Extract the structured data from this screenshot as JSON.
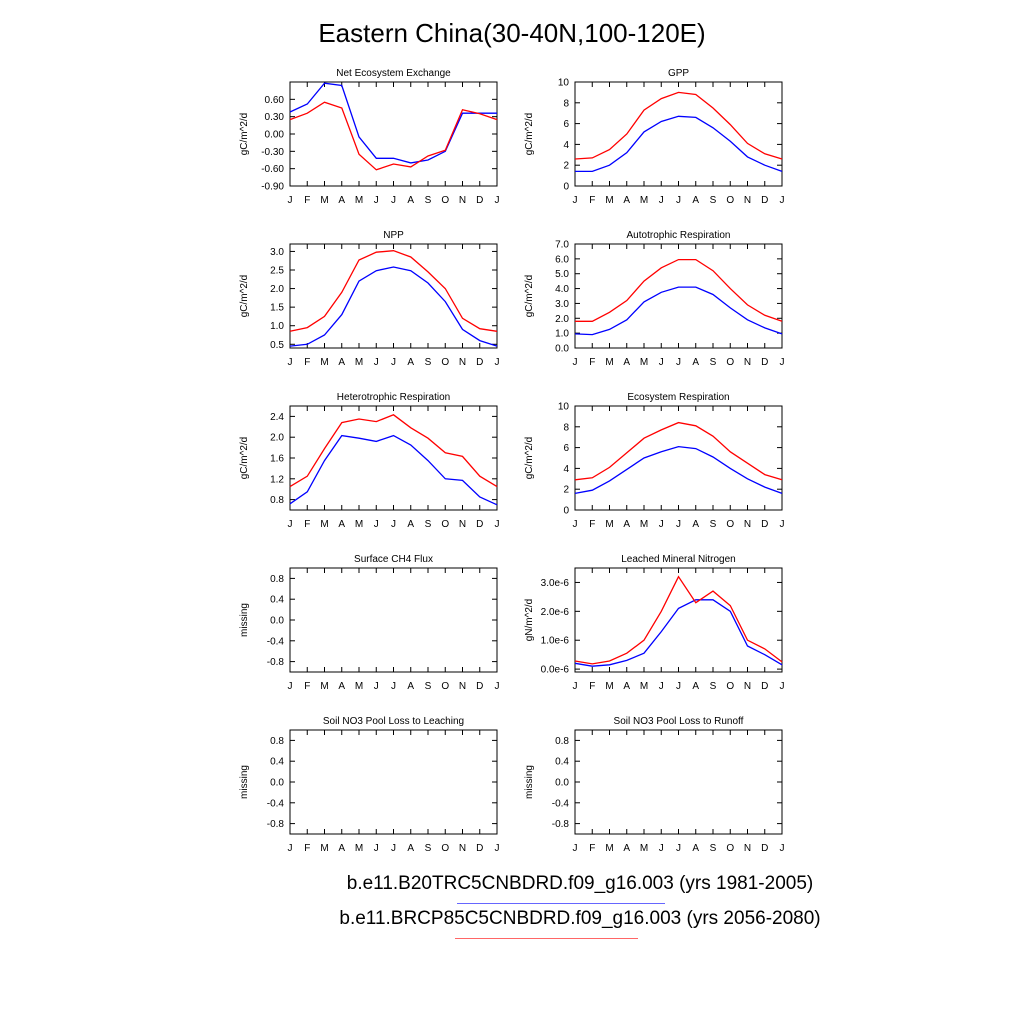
{
  "figure": {
    "title": "Eastern China(30-40N,100-120E)",
    "colors": {
      "case1": "#0000ff",
      "case2": "#ff0000"
    },
    "legend": [
      {
        "label": "b.e11.B20TRC5CNBDRD.f09_g16.003 (yrs 1981-2005)",
        "color": "#0000ff"
      },
      {
        "label": "b.e11.BRCP85C5CNBDRD.f09_g16.003 (yrs 2056-2080)",
        "color": "#ff0000"
      }
    ]
  },
  "chart_data": [
    {
      "type": "line",
      "title": "Net Ecosystem Exchange",
      "ylabel": "gC/m^2/d",
      "ylim": [
        -0.9,
        0.9
      ],
      "yticks": [
        "-0.90",
        "-0.60",
        "-0.30",
        "0.00",
        "0.30",
        "0.60"
      ],
      "categories": [
        "J",
        "F",
        "M",
        "A",
        "M",
        "J",
        "J",
        "A",
        "S",
        "O",
        "N",
        "D",
        "J"
      ],
      "series": [
        {
          "color": "#0000ff",
          "values": [
            0.38,
            0.52,
            0.88,
            0.84,
            -0.05,
            -0.42,
            -0.42,
            -0.5,
            -0.45,
            -0.3,
            0.36,
            0.36,
            0.36
          ]
        },
        {
          "color": "#ff0000",
          "values": [
            0.25,
            0.36,
            0.55,
            0.45,
            -0.35,
            -0.62,
            -0.52,
            -0.57,
            -0.38,
            -0.28,
            0.42,
            0.35,
            0.25
          ]
        }
      ]
    },
    {
      "type": "line",
      "title": "GPP",
      "ylabel": "gC/m^2/d",
      "ylim": [
        0,
        10
      ],
      "yticks": [
        "0",
        "2",
        "4",
        "6",
        "8",
        "10"
      ],
      "categories": [
        "J",
        "F",
        "M",
        "A",
        "M",
        "J",
        "J",
        "A",
        "S",
        "O",
        "N",
        "D",
        "J"
      ],
      "series": [
        {
          "color": "#0000ff",
          "values": [
            1.4,
            1.4,
            2.0,
            3.2,
            5.2,
            6.2,
            6.7,
            6.6,
            5.6,
            4.3,
            2.8,
            2.0,
            1.4
          ]
        },
        {
          "color": "#ff0000",
          "values": [
            2.6,
            2.7,
            3.5,
            5.0,
            7.3,
            8.4,
            9.0,
            8.8,
            7.5,
            5.9,
            4.1,
            3.1,
            2.6
          ]
        }
      ]
    },
    {
      "type": "line",
      "title": "NPP",
      "ylabel": "gC/m^2/d",
      "ylim": [
        0.4,
        3.2
      ],
      "yticks": [
        "0.5",
        "1.0",
        "1.5",
        "2.0",
        "2.5",
        "3.0"
      ],
      "categories": [
        "J",
        "F",
        "M",
        "A",
        "M",
        "J",
        "J",
        "A",
        "S",
        "O",
        "N",
        "D",
        "J"
      ],
      "series": [
        {
          "color": "#0000ff",
          "values": [
            0.45,
            0.5,
            0.75,
            1.3,
            2.2,
            2.48,
            2.58,
            2.48,
            2.15,
            1.65,
            0.9,
            0.6,
            0.45
          ]
        },
        {
          "color": "#ff0000",
          "values": [
            0.85,
            0.95,
            1.25,
            1.9,
            2.77,
            2.98,
            3.02,
            2.85,
            2.45,
            2.0,
            1.2,
            0.92,
            0.85
          ]
        }
      ]
    },
    {
      "type": "line",
      "title": "Autotrophic Respiration",
      "ylabel": "gC/m^2/d",
      "ylim": [
        0,
        7
      ],
      "yticks": [
        "0.0",
        "1.0",
        "2.0",
        "3.0",
        "4.0",
        "5.0",
        "6.0",
        "7.0"
      ],
      "categories": [
        "J",
        "F",
        "M",
        "A",
        "M",
        "J",
        "J",
        "A",
        "S",
        "O",
        "N",
        "D",
        "J"
      ],
      "series": [
        {
          "color": "#0000ff",
          "values": [
            0.95,
            0.9,
            1.25,
            1.9,
            3.1,
            3.75,
            4.1,
            4.1,
            3.6,
            2.7,
            1.9,
            1.35,
            0.95
          ]
        },
        {
          "color": "#ff0000",
          "values": [
            1.8,
            1.8,
            2.4,
            3.2,
            4.5,
            5.4,
            5.95,
            5.95,
            5.2,
            4.0,
            2.9,
            2.2,
            1.8
          ]
        }
      ]
    },
    {
      "type": "line",
      "title": "Heterotrophic Respiration",
      "ylabel": "gC/m^2/d",
      "ylim": [
        0.6,
        2.6
      ],
      "yticks": [
        "0.8",
        "1.2",
        "1.6",
        "2.0",
        "2.4"
      ],
      "categories": [
        "J",
        "F",
        "M",
        "A",
        "M",
        "J",
        "J",
        "A",
        "S",
        "O",
        "N",
        "D",
        "J"
      ],
      "series": [
        {
          "color": "#0000ff",
          "values": [
            0.72,
            0.95,
            1.55,
            2.03,
            1.98,
            1.92,
            2.03,
            1.85,
            1.55,
            1.2,
            1.17,
            0.85,
            0.7
          ]
        },
        {
          "color": "#ff0000",
          "values": [
            1.05,
            1.25,
            1.78,
            2.28,
            2.35,
            2.3,
            2.43,
            2.18,
            1.98,
            1.7,
            1.63,
            1.25,
            1.05
          ]
        }
      ]
    },
    {
      "type": "line",
      "title": "Ecosystem Respiration",
      "ylabel": "gC/m^2/d",
      "ylim": [
        0,
        10
      ],
      "yticks": [
        "0",
        "2",
        "4",
        "6",
        "8",
        "10"
      ],
      "categories": [
        "J",
        "F",
        "M",
        "A",
        "M",
        "J",
        "J",
        "A",
        "S",
        "O",
        "N",
        "D",
        "J"
      ],
      "series": [
        {
          "color": "#0000ff",
          "values": [
            1.6,
            1.9,
            2.8,
            3.9,
            5.0,
            5.6,
            6.1,
            5.9,
            5.1,
            4.0,
            3.0,
            2.2,
            1.6
          ]
        },
        {
          "color": "#ff0000",
          "values": [
            2.9,
            3.1,
            4.1,
            5.5,
            6.9,
            7.7,
            8.4,
            8.1,
            7.1,
            5.6,
            4.5,
            3.4,
            2.9
          ]
        }
      ]
    },
    {
      "type": "line",
      "title": "Surface CH4 Flux",
      "ylabel": "missing",
      "ylim": [
        -1,
        1
      ],
      "yticks": [
        "-0.8",
        "-0.4",
        "0.0",
        "0.4",
        "0.8"
      ],
      "categories": [
        "J",
        "F",
        "M",
        "A",
        "M",
        "J",
        "J",
        "A",
        "S",
        "O",
        "N",
        "D",
        "J"
      ],
      "series": []
    },
    {
      "type": "line",
      "title": "Leached Mineral Nitrogen",
      "ylabel": "gN/m^2/d",
      "ylim": [
        -1e-07,
        3.5e-06
      ],
      "yticks": [
        "0.0e-6",
        "1.0e-6",
        "2.0e-6",
        "3.0e-6"
      ],
      "ytick_values": [
        0,
        1e-06,
        2e-06,
        3e-06
      ],
      "categories": [
        "J",
        "F",
        "M",
        "A",
        "M",
        "J",
        "J",
        "A",
        "S",
        "O",
        "N",
        "D",
        "J"
      ],
      "series": [
        {
          "color": "#0000ff",
          "values": [
            2e-07,
            1e-07,
            1.5e-07,
            3e-07,
            5.5e-07,
            1.3e-06,
            2.1e-06,
            2.4e-06,
            2.4e-06,
            2e-06,
            8e-07,
            5e-07,
            1.5e-07
          ]
        },
        {
          "color": "#ff0000",
          "values": [
            2.8e-07,
            1.8e-07,
            2.8e-07,
            5.5e-07,
            1e-06,
            2e-06,
            3.2e-06,
            2.3e-06,
            2.7e-06,
            2.2e-06,
            1e-06,
            7e-07,
            2.5e-07
          ]
        }
      ]
    },
    {
      "type": "line",
      "title": "Soil NO3 Pool Loss to Leaching",
      "ylabel": "missing",
      "ylim": [
        -1,
        1
      ],
      "yticks": [
        "-0.8",
        "-0.4",
        "0.0",
        "0.4",
        "0.8"
      ],
      "categories": [
        "J",
        "F",
        "M",
        "A",
        "M",
        "J",
        "J",
        "A",
        "S",
        "O",
        "N",
        "D",
        "J"
      ],
      "series": []
    },
    {
      "type": "line",
      "title": "Soil NO3 Pool Loss to Runoff",
      "ylabel": "missing",
      "ylim": [
        -1,
        1
      ],
      "yticks": [
        "-0.8",
        "-0.4",
        "0.0",
        "0.4",
        "0.8"
      ],
      "categories": [
        "J",
        "F",
        "M",
        "A",
        "M",
        "J",
        "J",
        "A",
        "S",
        "O",
        "N",
        "D",
        "J"
      ],
      "series": []
    }
  ]
}
